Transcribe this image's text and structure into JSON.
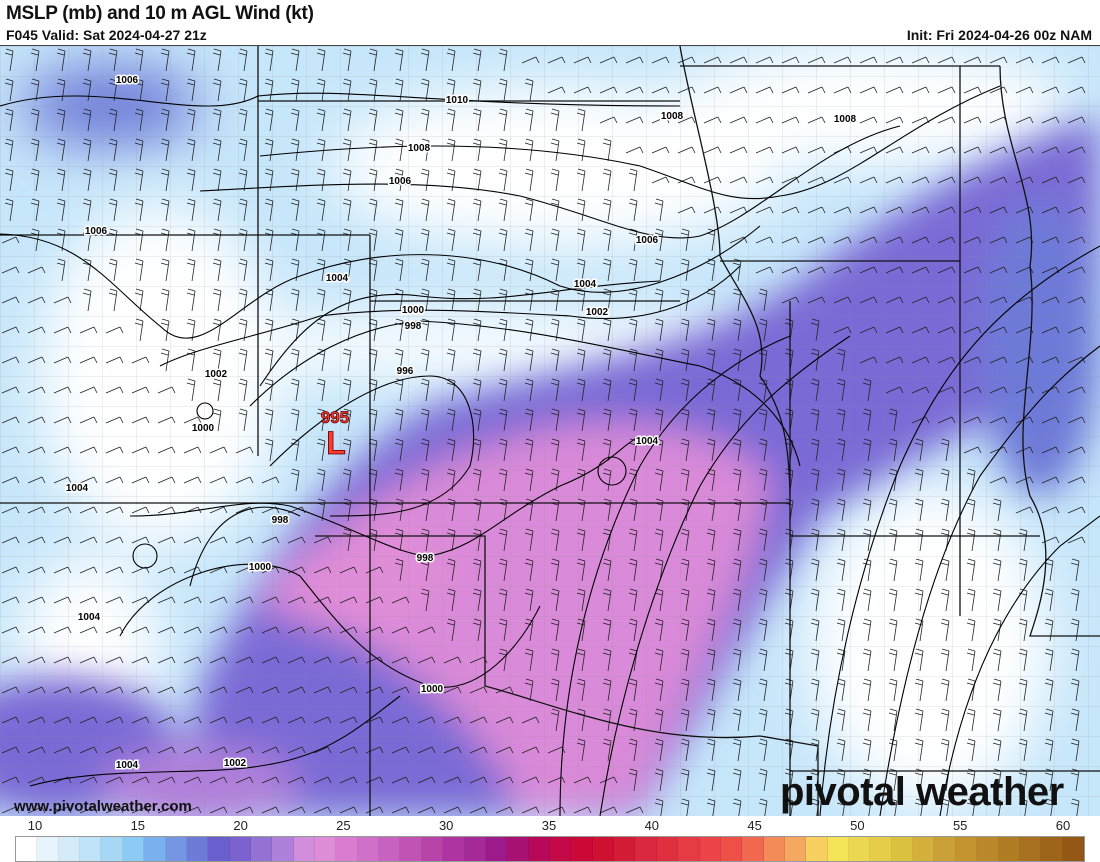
{
  "header": {
    "title": "MSLP (mb) and 10 m AGL Wind (kt)",
    "valid": "F045 Valid: Sat 2024-04-27 21z",
    "init": "Init: Fri 2024-04-26 00z NAM"
  },
  "map": {
    "low_center": {
      "pressure": "995",
      "symbol": "L",
      "color": "#ff3b30"
    },
    "isobar_labels": [
      "1006",
      "1010",
      "1008",
      "1008",
      "1008",
      "1006",
      "1006",
      "1006",
      "1004",
      "1004",
      "1002",
      "1000",
      "998",
      "996",
      "1002",
      "1000",
      "1004",
      "1004",
      "998",
      "998",
      "1000",
      "1004",
      "1000",
      "1002",
      "1004"
    ]
  },
  "branding": {
    "url": "www.pivotalweather.com",
    "logo": "pivotal weather"
  },
  "colorbar": {
    "units": "kt",
    "tick_labels": [
      "10",
      "15",
      "20",
      "25",
      "30",
      "35",
      "40",
      "45",
      "50",
      "55",
      "60"
    ],
    "colors": [
      "#ffffff",
      "#e8f4fc",
      "#d4ebf9",
      "#bfe3f9",
      "#a6d8f6",
      "#8ccbf4",
      "#7bb0ee",
      "#7596e2",
      "#6e7ad8",
      "#6a5fcf",
      "#7c62cf",
      "#9472d4",
      "#ae80da",
      "#d28ddd",
      "#e08dd8",
      "#da7dd0",
      "#d070c8",
      "#c862c0",
      "#c053b4",
      "#b844aa",
      "#ae34a2",
      "#a42a98",
      "#9c1a8a",
      "#a81072",
      "#b8085a",
      "#c40848",
      "#cc0838",
      "#d01030",
      "#d41c38",
      "#da2840",
      "#e03040",
      "#e63a44",
      "#ec4448",
      "#ee5048",
      "#f06850",
      "#f48a58",
      "#f4a860",
      "#f8d060",
      "#f4e458",
      "#ecd850",
      "#e6cc48",
      "#dcc040",
      "#d4b03c",
      "#cca038",
      "#c49430",
      "#bc882c",
      "#b07c24",
      "#a87020",
      "#9e641a",
      "#945814"
    ]
  }
}
